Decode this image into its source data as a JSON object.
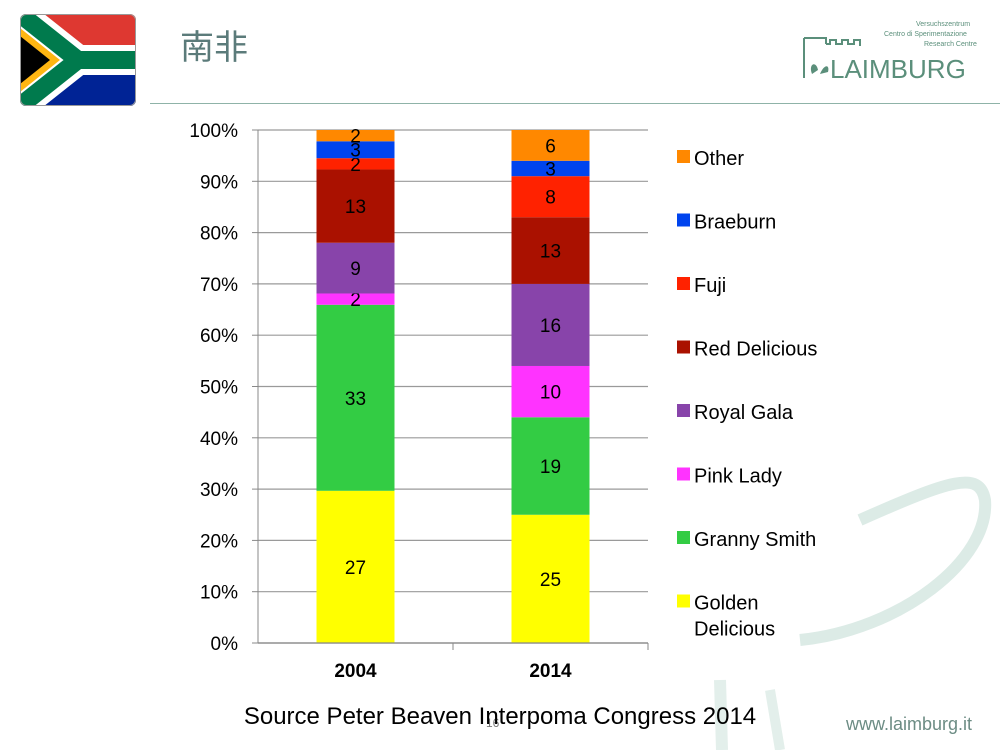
{
  "slide": {
    "title": "南非",
    "source": "Source Peter Beaven Interpoma Congress 2014",
    "page_number": "16",
    "website": "www.laimburg.it"
  },
  "logo": {
    "brand": "LAIMBURG",
    "lines": [
      "Versuchszentrum",
      "Centro di Sperimentazione",
      "Research Centre"
    ]
  },
  "colors": {
    "accent": "#5b8f7b"
  },
  "chart_data": {
    "type": "bar",
    "stacked": true,
    "normalized_percent": true,
    "categories": [
      "2004",
      "2014"
    ],
    "y_ticks": [
      "0%",
      "10%",
      "20%",
      "30%",
      "40%",
      "50%",
      "60%",
      "70%",
      "80%",
      "90%",
      "100%"
    ],
    "ylim": [
      0,
      100
    ],
    "grid": true,
    "legend_position": "right",
    "series": [
      {
        "name": "Golden Delicious",
        "color": "#ffff00",
        "values": [
          27,
          25
        ]
      },
      {
        "name": "Granny Smith",
        "color": "#33cc44",
        "values": [
          33,
          19
        ]
      },
      {
        "name": "Pink Lady",
        "color": "#ff33ff",
        "values": [
          2,
          10
        ]
      },
      {
        "name": "Royal Gala",
        "color": "#8844aa",
        "values": [
          9,
          16
        ]
      },
      {
        "name": "Red Delicious",
        "color": "#aa1100",
        "values": [
          13,
          13
        ]
      },
      {
        "name": "Fuji",
        "color": "#ff2200",
        "values": [
          2,
          8
        ]
      },
      {
        "name": "Braeburn",
        "color": "#0044ee",
        "values": [
          3,
          3
        ]
      },
      {
        "name": "Other",
        "color": "#ff8800",
        "values": [
          2,
          6
        ]
      }
    ]
  }
}
